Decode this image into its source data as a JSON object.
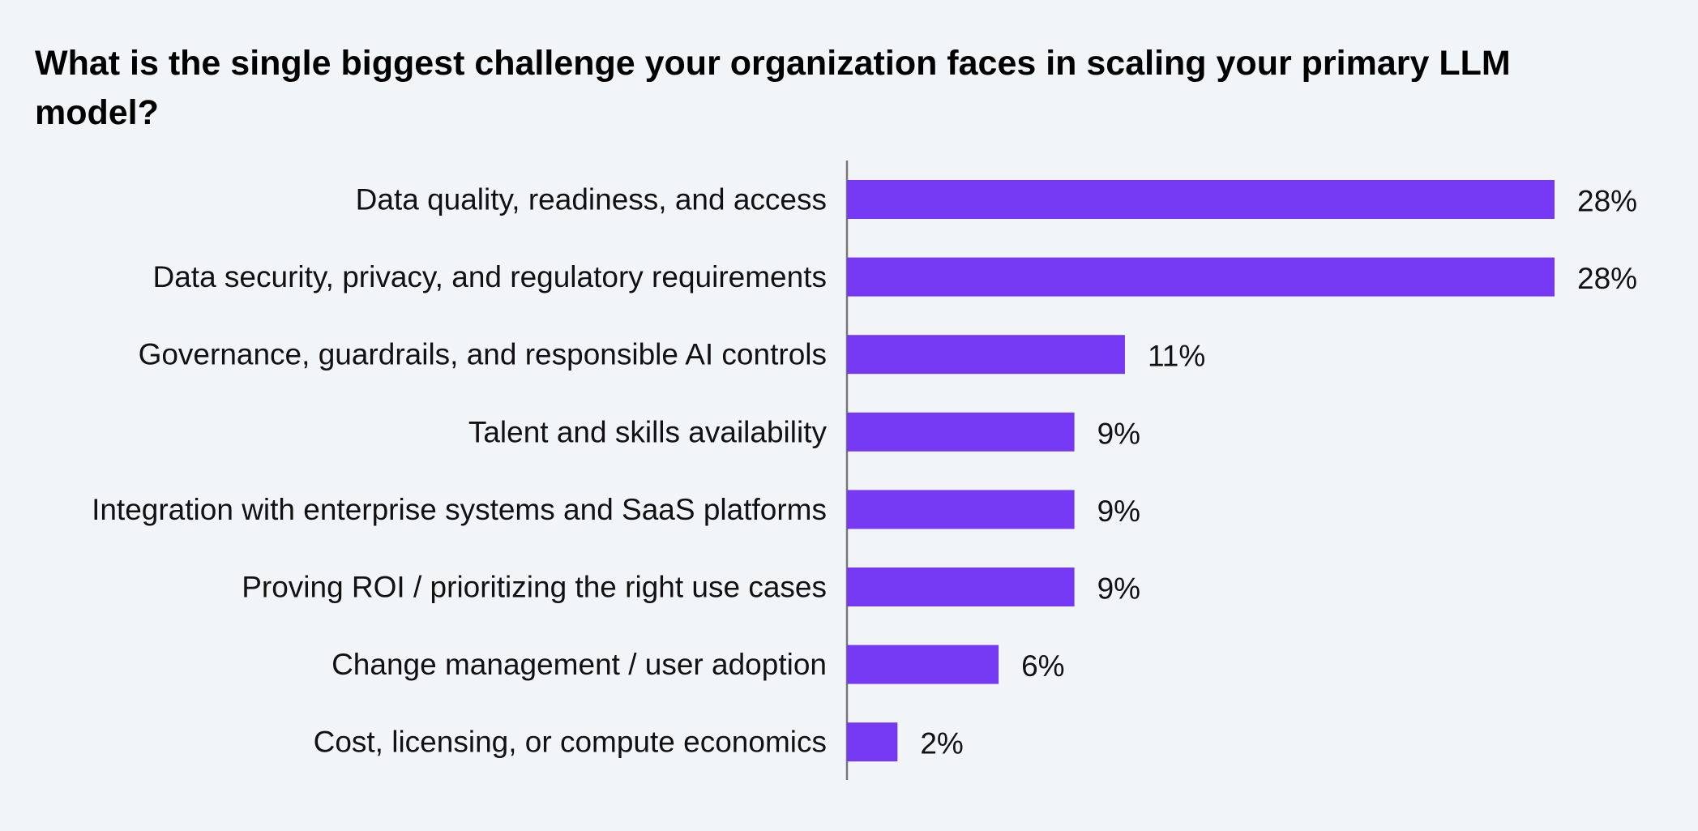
{
  "chart_data": {
    "type": "bar",
    "orientation": "horizontal",
    "title": "What is the single biggest challenge your organization faces in scaling your primary LLM model?",
    "categories": [
      "Data quality, readiness, and access",
      "Data security, privacy, and regulatory requirements",
      "Governance, guardrails, and responsible AI controls",
      "Talent and skills availability",
      "Integration with enterprise systems and SaaS platforms",
      "Proving ROI / prioritizing the right use cases",
      "Change management / user adoption",
      "Cost, licensing, or compute economics"
    ],
    "values": [
      28,
      28,
      11,
      9,
      9,
      9,
      6,
      2
    ],
    "value_labels": [
      "28%",
      "28%",
      "11%",
      "9%",
      "9%",
      "9%",
      "6%",
      "2%"
    ],
    "xlim": [
      0,
      28
    ],
    "grid": false,
    "legend": "none",
    "colors": {
      "bar": "#7639f3",
      "axis": "#777777",
      "background": "#f2f5f8"
    }
  }
}
